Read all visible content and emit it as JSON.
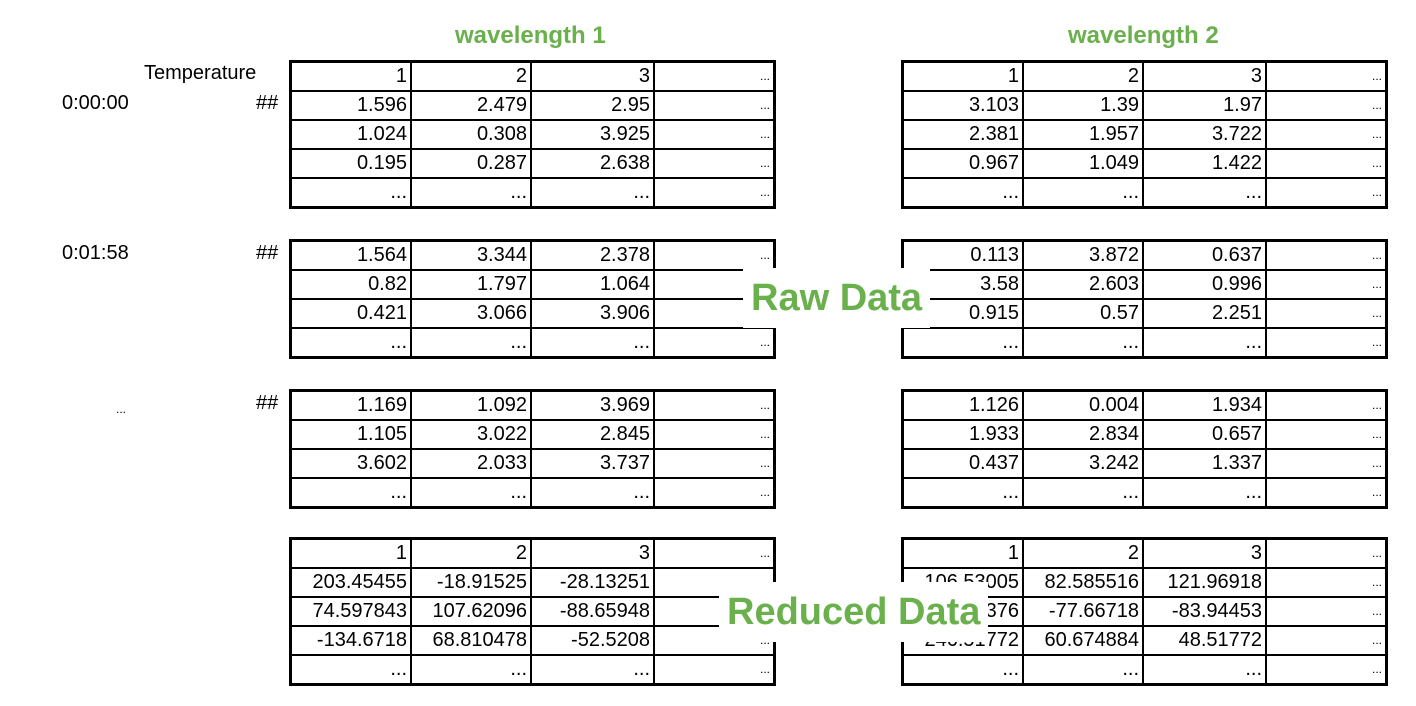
{
  "headers": {
    "wavelength1": "wavelength 1",
    "wavelength2": "wavelength 2"
  },
  "temperature_label": "Temperature",
  "times": [
    "0:00:00",
    "0:01:58",
    "..."
  ],
  "hash": "##",
  "wl1": {
    "header_row": [
      "1",
      "2",
      "3",
      "..."
    ],
    "blocks": [
      [
        [
          "1.596",
          "2.479",
          "2.95",
          "..."
        ],
        [
          "1.024",
          "0.308",
          "3.925",
          "..."
        ],
        [
          "0.195",
          "0.287",
          "2.638",
          "..."
        ],
        [
          "...",
          "...",
          "...",
          "..."
        ]
      ],
      [
        [
          "1.564",
          "3.344",
          "2.378",
          "..."
        ],
        [
          "0.82",
          "1.797",
          "1.064",
          "..."
        ],
        [
          "0.421",
          "3.066",
          "3.906",
          "..."
        ],
        [
          "...",
          "...",
          "...",
          "..."
        ]
      ],
      [
        [
          "1.169",
          "1.092",
          "3.969",
          "..."
        ],
        [
          "1.105",
          "3.022",
          "2.845",
          "..."
        ],
        [
          "3.602",
          "2.033",
          "3.737",
          "..."
        ],
        [
          "...",
          "...",
          "...",
          "..."
        ]
      ]
    ],
    "reduced": [
      [
        "1",
        "2",
        "3",
        "..."
      ],
      [
        "203.45455",
        "-18.91525",
        "-28.13251",
        "..."
      ],
      [
        "74.597843",
        "107.62096",
        "-88.65948",
        "..."
      ],
      [
        "-134.6718",
        "68.810478",
        "-52.5208",
        "..."
      ],
      [
        "...",
        "...",
        "...",
        "..."
      ]
    ]
  },
  "wl2": {
    "header_row": [
      "1",
      "2",
      "3",
      "..."
    ],
    "blocks": [
      [
        [
          "3.103",
          "1.39",
          "1.97",
          "..."
        ],
        [
          "2.381",
          "1.957",
          "3.722",
          "..."
        ],
        [
          "0.967",
          "1.049",
          "1.422",
          "..."
        ],
        [
          "...",
          "...",
          "...",
          "..."
        ]
      ],
      [
        [
          "0.113",
          "3.872",
          "0.637",
          "..."
        ],
        [
          "3.58",
          "2.603",
          "0.996",
          "..."
        ],
        [
          "0.915",
          "0.57",
          "2.251",
          "..."
        ],
        [
          "...",
          "...",
          "...",
          "..."
        ]
      ],
      [
        [
          "1.126",
          "0.004",
          "1.934",
          "..."
        ],
        [
          "1.933",
          "2.834",
          "0.657",
          "..."
        ],
        [
          "0.437",
          "3.242",
          "1.337",
          "..."
        ],
        [
          "...",
          "...",
          "...",
          "..."
        ]
      ]
    ],
    "reduced": [
      [
        "1",
        "2",
        "3",
        "..."
      ],
      [
        "106.53005",
        "82.585516",
        "121.96918",
        "..."
      ],
      [
        "376",
        "-77.66718",
        "-83.94453",
        "..."
      ],
      [
        "246.51772",
        "60.674884",
        "48.51772",
        "..."
      ],
      [
        "...",
        "...",
        "...",
        "..."
      ]
    ]
  },
  "labels": {
    "raw": "Raw Data",
    "reduced": "Reduced Data"
  }
}
